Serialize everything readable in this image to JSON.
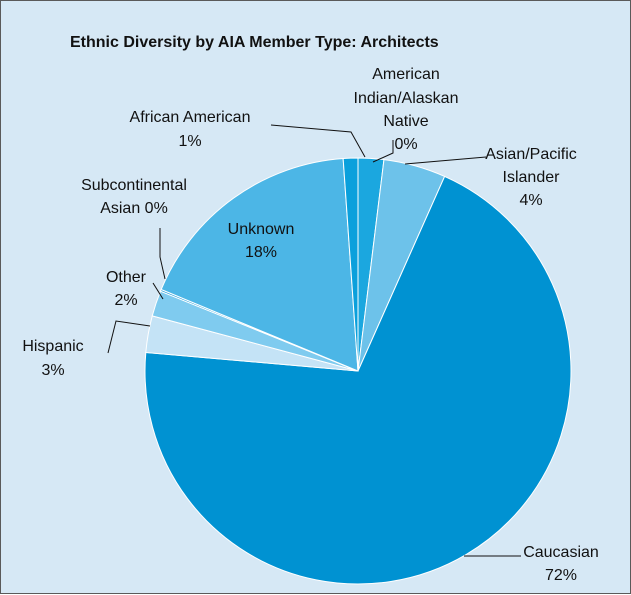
{
  "chart_data": {
    "type": "pie",
    "title": "Ethnic Diversity by AIA Member Type: Architects",
    "slices": [
      {
        "label_lines": [
          "American",
          "Indian/Alaskan",
          "Native",
          "0%"
        ],
        "value": 0,
        "color": "#1ba7df"
      },
      {
        "label_lines": [
          "Asian/Pacific",
          "Islander",
          "4%"
        ],
        "value": 4,
        "color": "#6dc2ea"
      },
      {
        "label_lines": [
          "Caucasian",
          "72%"
        ],
        "value": 72,
        "color": "#0092d2"
      },
      {
        "label_lines": [
          "Hispanic",
          "3%"
        ],
        "value": 3,
        "color": "#c4e3f6"
      },
      {
        "label_lines": [
          "Other",
          "2%"
        ],
        "value": 2,
        "color": "#7fcbef"
      },
      {
        "label_lines": [
          "Subcontinental",
          "Asian 0%"
        ],
        "value": 0,
        "color": "#2aa3dd"
      },
      {
        "label_lines": [
          "Unknown",
          "18%"
        ],
        "value": 18,
        "color": "#4cb6e6"
      },
      {
        "label_lines": [
          "African American",
          "1%"
        ],
        "value": 1,
        "color": "#0aa0dc"
      }
    ]
  }
}
